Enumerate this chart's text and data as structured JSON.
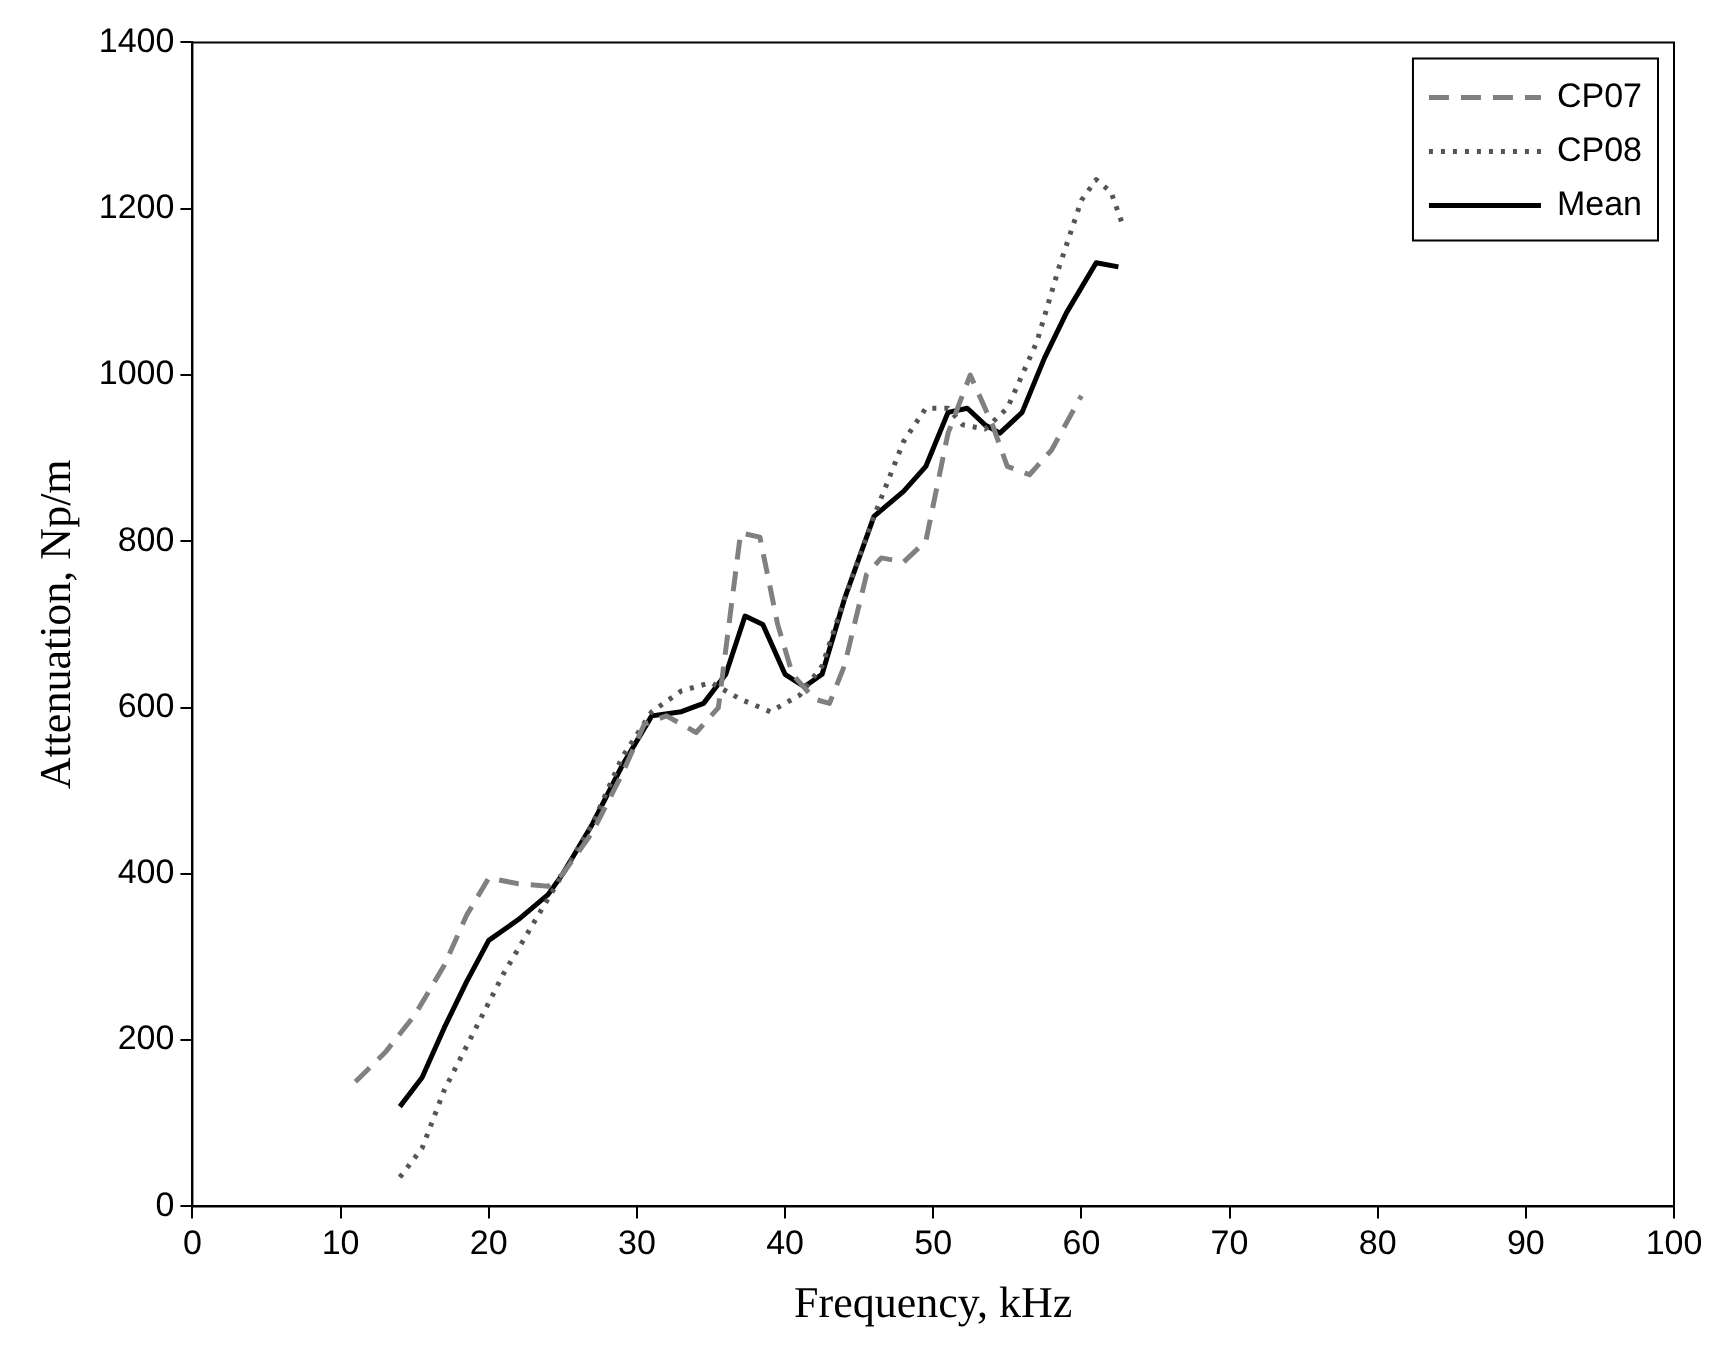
{
  "chart_data": {
    "type": "line",
    "xlabel": "Frequency, kHz",
    "ylabel": "Attenuation, Np/m",
    "xlim": [
      0,
      100
    ],
    "xticks": [
      0,
      10,
      20,
      30,
      40,
      50,
      60,
      70,
      80,
      90,
      100
    ],
    "ylim": [
      0,
      1400
    ],
    "yticks": [
      0,
      200,
      400,
      600,
      800,
      1000,
      1200,
      1400
    ],
    "grid": false,
    "legend": "top right",
    "marker": "none",
    "series": [
      {
        "name": "CP07",
        "color": "#808080",
        "line_style": "dashed",
        "x": [
          11,
          13,
          15,
          17,
          18.5,
          20,
          22,
          24,
          25,
          27,
          29,
          30.5,
          32,
          34,
          35.5,
          37,
          38.3,
          39.5,
          40.5,
          42,
          43,
          44,
          45.5,
          46.5,
          48,
          49.5,
          51,
          52.5,
          54,
          55,
          56.5,
          58,
          60
        ],
        "values": [
          150,
          185,
          230,
          290,
          350,
          395,
          388,
          385,
          400,
          450,
          520,
          580,
          590,
          570,
          600,
          810,
          805,
          700,
          640,
          610,
          605,
          650,
          760,
          780,
          775,
          800,
          930,
          1000,
          940,
          890,
          880,
          910,
          975
        ]
      },
      {
        "name": "CP08",
        "color": "#555555",
        "line_style": "dotted",
        "x": [
          14,
          15.5,
          17,
          19,
          21,
          23,
          25,
          27,
          29,
          31,
          33,
          35,
          37,
          39,
          41,
          42.5,
          44,
          46,
          48,
          49.5,
          51,
          52,
          53.5,
          55,
          57,
          58.5,
          60,
          61,
          62,
          62.8
        ],
        "values": [
          35,
          70,
          140,
          210,
          280,
          340,
          400,
          460,
          540,
          595,
          620,
          630,
          610,
          595,
          615,
          650,
          730,
          830,
          920,
          960,
          960,
          940,
          935,
          960,
          1040,
          1130,
          1210,
          1235,
          1220,
          1180
        ]
      },
      {
        "name": "Mean",
        "color": "#000000",
        "line_style": "solid",
        "x": [
          14,
          15.5,
          17,
          18.5,
          20,
          22,
          24,
          25,
          27,
          29,
          31,
          33,
          34.5,
          36,
          37.3,
          38.5,
          40,
          41.3,
          42.5,
          44,
          46,
          48,
          49.5,
          51,
          52.3,
          53.5,
          54.5,
          56,
          57.5,
          59,
          61,
          62.5
        ],
        "values": [
          120,
          155,
          215,
          270,
          320,
          345,
          375,
          400,
          460,
          530,
          590,
          595,
          605,
          640,
          710,
          700,
          640,
          625,
          640,
          730,
          830,
          860,
          890,
          955,
          960,
          940,
          930,
          955,
          1020,
          1075,
          1135,
          1130
        ]
      }
    ]
  }
}
